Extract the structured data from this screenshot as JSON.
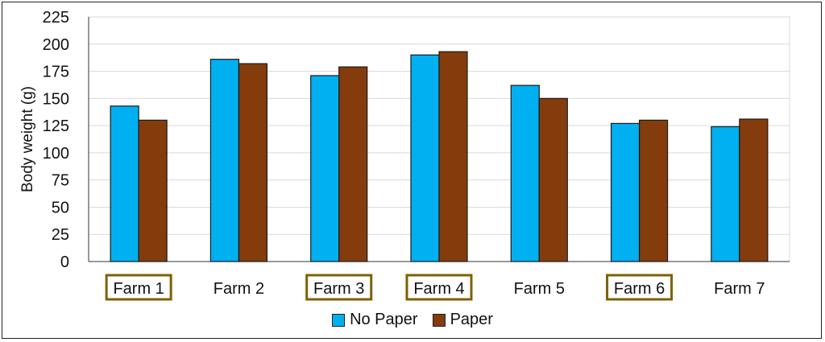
{
  "chart_data": {
    "type": "bar",
    "title": "",
    "xlabel": "",
    "ylabel": "Body weight (g)",
    "ylim": [
      0,
      225
    ],
    "yticks": [
      0,
      25,
      50,
      75,
      100,
      125,
      150,
      175,
      200,
      225
    ],
    "grid": true,
    "legend_placement": "bottom",
    "categories": [
      "Farm 1",
      "Farm 2",
      "Farm 3",
      "Farm 4",
      "Farm 5",
      "Farm 6",
      "Farm 7"
    ],
    "highlighted_categories": [
      "Farm 1",
      "Farm 3",
      "Farm 4",
      "Farm 6"
    ],
    "highlight_color": "#7f6000",
    "series": [
      {
        "name": "No Paper",
        "color": "#00b0f0",
        "values": [
          143,
          186,
          171,
          190,
          162,
          127,
          124
        ]
      },
      {
        "name": "Paper",
        "color": "#843c0c",
        "values": [
          130,
          182,
          179,
          193,
          150,
          130,
          131
        ]
      }
    ]
  }
}
